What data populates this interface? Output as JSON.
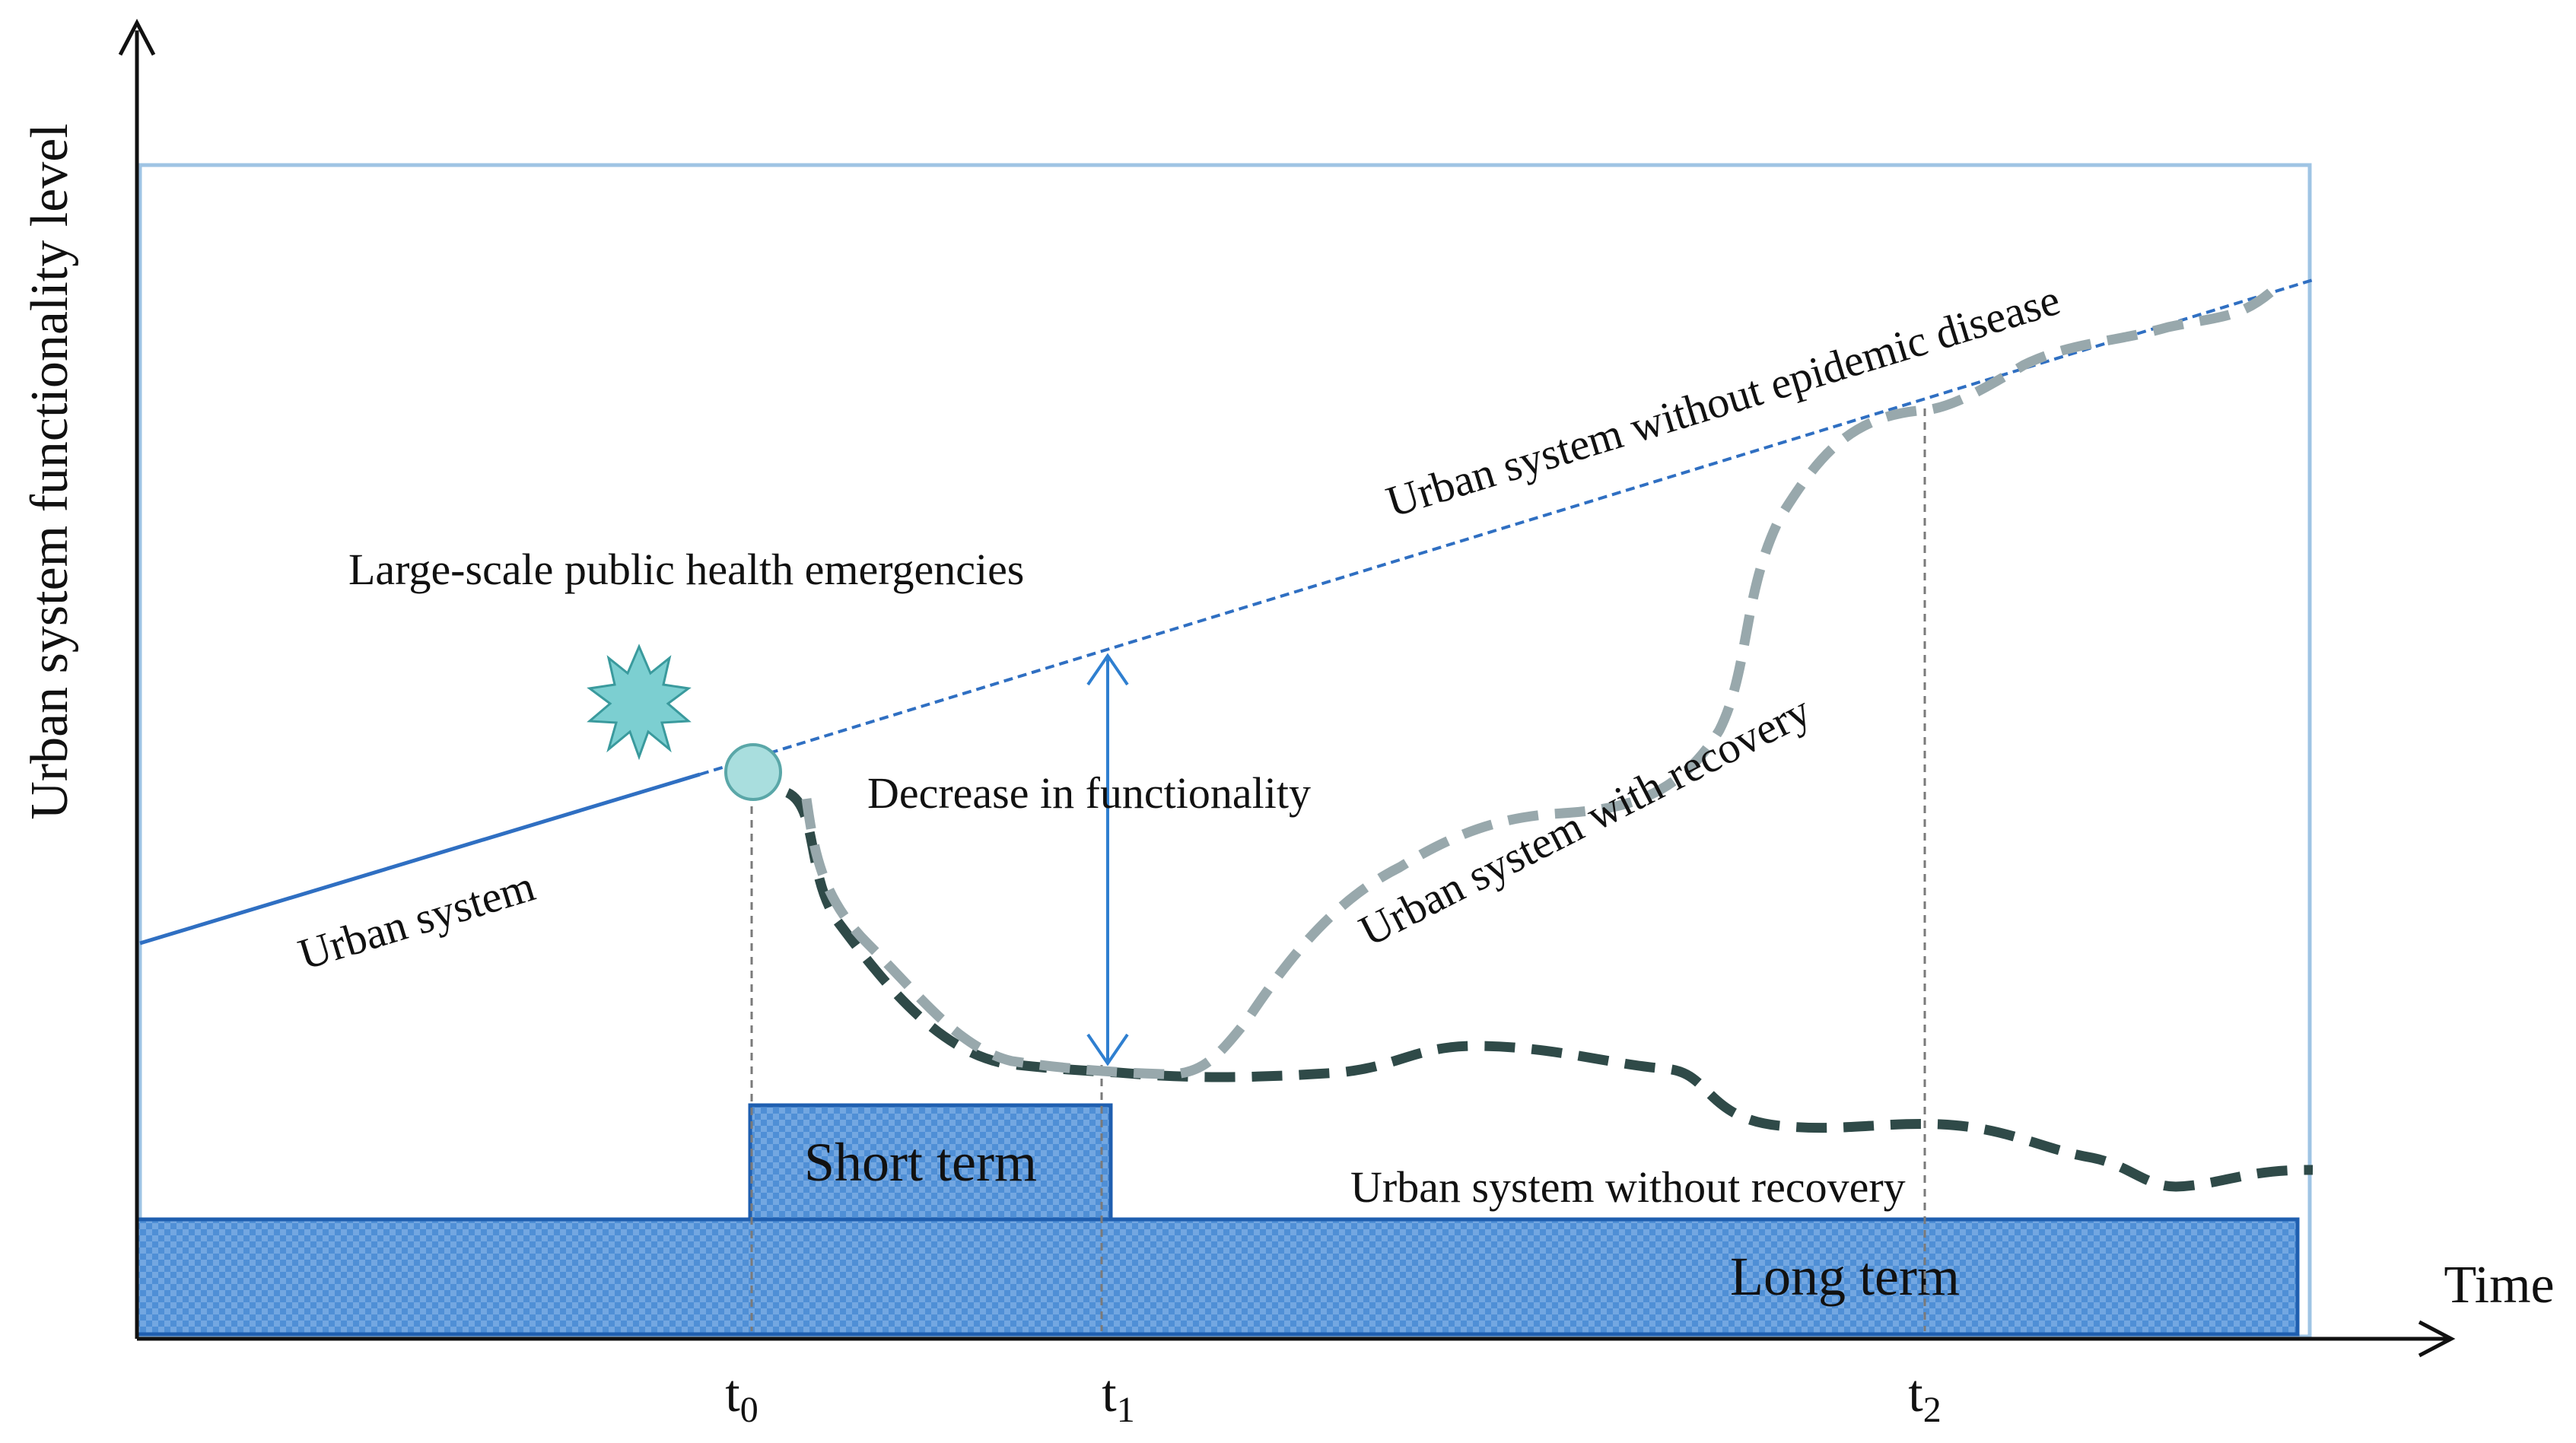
{
  "axes": {
    "y_label": "Urban system functionality level",
    "x_label": "Time"
  },
  "time_marks": [
    {
      "label": "t",
      "sub": "0"
    },
    {
      "label": "t",
      "sub": "1"
    },
    {
      "label": "t",
      "sub": "2"
    }
  ],
  "labels": {
    "emergency": "Large-scale public health emergencies",
    "baseline": "Urban system without epidemic disease",
    "urban_system": "Urban system",
    "decrease": "Decrease in functionality",
    "with_recovery": "Urban system with recovery",
    "without_recovery": "Urban system without recovery",
    "short_term": "Short term",
    "long_term": "Long term"
  },
  "colors": {
    "baseline": "#2f6fc2",
    "frame": "#9fc4e4",
    "recovery": "#98a8ac",
    "no_recovery": "#2f4a48",
    "box_fill": "#4f8fd6",
    "box_stroke": "#1f5fb0",
    "marker": "#a9dede",
    "starburst": "#7ccfd1"
  }
}
